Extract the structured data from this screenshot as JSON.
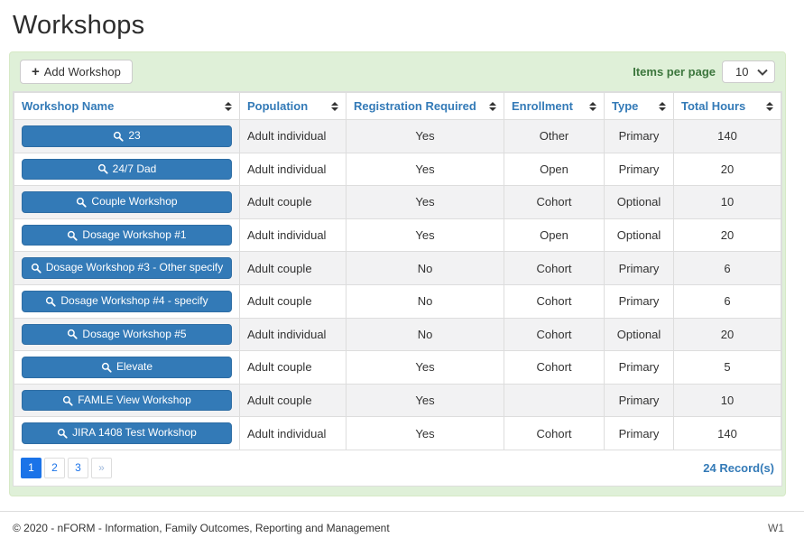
{
  "page": {
    "title": "Workshops"
  },
  "toolbar": {
    "add_button_label": "Add Workshop",
    "items_per_page_label": "Items per page",
    "items_per_page_value": "10"
  },
  "table": {
    "columns": [
      "Workshop Name",
      "Population",
      "Registration Required",
      "Enrollment",
      "Type",
      "Total Hours"
    ],
    "rows": [
      {
        "name": "23",
        "population": "Adult individual",
        "registration_required": "Yes",
        "enrollment": "Other",
        "type": "Primary",
        "total_hours": "140"
      },
      {
        "name": "24/7 Dad",
        "population": "Adult individual",
        "registration_required": "Yes",
        "enrollment": "Open",
        "type": "Primary",
        "total_hours": "20"
      },
      {
        "name": "Couple Workshop",
        "population": "Adult couple",
        "registration_required": "Yes",
        "enrollment": "Cohort",
        "type": "Optional",
        "total_hours": "10"
      },
      {
        "name": "Dosage Workshop #1",
        "population": "Adult individual",
        "registration_required": "Yes",
        "enrollment": "Open",
        "type": "Optional",
        "total_hours": "20"
      },
      {
        "name": "Dosage Workshop #3 - Other specify",
        "population": "Adult couple",
        "registration_required": "No",
        "enrollment": "Cohort",
        "type": "Primary",
        "total_hours": "6"
      },
      {
        "name": "Dosage Workshop #4 - specify",
        "population": "Adult couple",
        "registration_required": "No",
        "enrollment": "Cohort",
        "type": "Primary",
        "total_hours": "6"
      },
      {
        "name": "Dosage Workshop #5",
        "population": "Adult individual",
        "registration_required": "No",
        "enrollment": "Cohort",
        "type": "Optional",
        "total_hours": "20"
      },
      {
        "name": "Elevate",
        "population": "Adult couple",
        "registration_required": "Yes",
        "enrollment": "Cohort",
        "type": "Primary",
        "total_hours": "5"
      },
      {
        "name": "FAMLE View Workshop",
        "population": "Adult couple",
        "registration_required": "Yes",
        "enrollment": "",
        "type": "Primary",
        "total_hours": "10"
      },
      {
        "name": "JIRA 1408 Test Workshop",
        "population": "Adult individual",
        "registration_required": "Yes",
        "enrollment": "Cohort",
        "type": "Primary",
        "total_hours": "140"
      }
    ]
  },
  "pagination": {
    "pages": [
      "1",
      "2",
      "3"
    ],
    "active_page": "1",
    "next_label": "»",
    "records_label": "24 Record(s)"
  },
  "footer": {
    "copyright": "© 2020 - nFORM - Information, Family Outcomes, Reporting and Management",
    "version": "W1"
  },
  "icons": {
    "add_button": "plus-icon",
    "workshop_name_button": "search-icon",
    "items_per_page": "chevron-down-icon",
    "column_header": "sort-icon"
  },
  "colors": {
    "accent_blue": "#337ab7",
    "button_border_blue": "#2e6da4",
    "pagination_active_blue": "#1b73e8",
    "panel_background_green": "#dff0d8",
    "panel_border_green": "#d6e9c6",
    "toolbar_text_green": "#3c763d",
    "row_stripe_gray": "#f2f2f3",
    "grid_border_gray": "#dddddd"
  }
}
